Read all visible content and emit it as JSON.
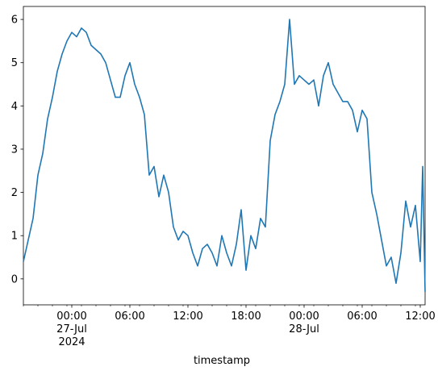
{
  "chart_data": {
    "type": "line",
    "title": "",
    "xlabel": "timestamp",
    "ylabel": "",
    "ylim": [
      -0.6,
      6.3
    ],
    "grid": false,
    "legend": null,
    "y_ticks": [
      0,
      1,
      2,
      3,
      4,
      5,
      6
    ],
    "x_range_hours": [
      "2024-07-26 19:00",
      "2024-07-28 12:30"
    ],
    "x_ticks": [
      {
        "time": "2024-07-27 00:00",
        "label": "00:00",
        "sub": "27-Jul",
        "sub2": "2024"
      },
      {
        "time": "2024-07-27 06:00",
        "label": "06:00"
      },
      {
        "time": "2024-07-27 12:00",
        "label": "12:00"
      },
      {
        "time": "2024-07-27 18:00",
        "label": "18:00"
      },
      {
        "time": "2024-07-28 00:00",
        "label": "00:00",
        "sub": "28-Jul"
      },
      {
        "time": "2024-07-28 06:00",
        "label": "06:00"
      },
      {
        "time": "2024-07-28 12:00",
        "label": "12:00"
      }
    ],
    "series": [
      {
        "color": "#1f77b4",
        "points": [
          [
            "2024-07-26 19:00",
            0.4
          ],
          [
            "2024-07-26 19:30",
            0.9
          ],
          [
            "2024-07-26 20:00",
            1.4
          ],
          [
            "2024-07-26 20:30",
            2.4
          ],
          [
            "2024-07-26 21:00",
            2.9
          ],
          [
            "2024-07-26 21:30",
            3.7
          ],
          [
            "2024-07-26 22:00",
            4.2
          ],
          [
            "2024-07-26 22:30",
            4.8
          ],
          [
            "2024-07-26 23:00",
            5.2
          ],
          [
            "2024-07-26 23:30",
            5.5
          ],
          [
            "2024-07-27 00:00",
            5.7
          ],
          [
            "2024-07-27 00:30",
            5.6
          ],
          [
            "2024-07-27 01:00",
            5.8
          ],
          [
            "2024-07-27 01:30",
            5.7
          ],
          [
            "2024-07-27 02:00",
            5.4
          ],
          [
            "2024-07-27 02:30",
            5.3
          ],
          [
            "2024-07-27 03:00",
            5.2
          ],
          [
            "2024-07-27 03:30",
            5.0
          ],
          [
            "2024-07-27 04:00",
            4.6
          ],
          [
            "2024-07-27 04:30",
            4.2
          ],
          [
            "2024-07-27 05:00",
            4.2
          ],
          [
            "2024-07-27 05:30",
            4.7
          ],
          [
            "2024-07-27 06:00",
            5.0
          ],
          [
            "2024-07-27 06:30",
            4.5
          ],
          [
            "2024-07-27 07:00",
            4.2
          ],
          [
            "2024-07-27 07:30",
            3.8
          ],
          [
            "2024-07-27 08:00",
            2.4
          ],
          [
            "2024-07-27 08:30",
            2.6
          ],
          [
            "2024-07-27 09:00",
            1.9
          ],
          [
            "2024-07-27 09:30",
            2.4
          ],
          [
            "2024-07-27 10:00",
            2.0
          ],
          [
            "2024-07-27 10:30",
            1.2
          ],
          [
            "2024-07-27 11:00",
            0.9
          ],
          [
            "2024-07-27 11:30",
            1.1
          ],
          [
            "2024-07-27 12:00",
            1.0
          ],
          [
            "2024-07-27 12:30",
            0.6
          ],
          [
            "2024-07-27 13:00",
            0.3
          ],
          [
            "2024-07-27 13:30",
            0.7
          ],
          [
            "2024-07-27 14:00",
            0.8
          ],
          [
            "2024-07-27 14:30",
            0.6
          ],
          [
            "2024-07-27 15:00",
            0.3
          ],
          [
            "2024-07-27 15:30",
            1.0
          ],
          [
            "2024-07-27 16:00",
            0.6
          ],
          [
            "2024-07-27 16:30",
            0.3
          ],
          [
            "2024-07-27 17:00",
            0.8
          ],
          [
            "2024-07-27 17:30",
            1.6
          ],
          [
            "2024-07-27 18:00",
            0.2
          ],
          [
            "2024-07-27 18:30",
            1.0
          ],
          [
            "2024-07-27 19:00",
            0.7
          ],
          [
            "2024-07-27 19:30",
            1.4
          ],
          [
            "2024-07-27 20:00",
            1.2
          ],
          [
            "2024-07-27 20:30",
            3.2
          ],
          [
            "2024-07-27 21:00",
            3.8
          ],
          [
            "2024-07-27 21:30",
            4.1
          ],
          [
            "2024-07-27 22:00",
            4.5
          ],
          [
            "2024-07-27 22:30",
            6.0
          ],
          [
            "2024-07-27 23:00",
            4.5
          ],
          [
            "2024-07-27 23:30",
            4.7
          ],
          [
            "2024-07-28 00:00",
            4.6
          ],
          [
            "2024-07-28 00:30",
            4.5
          ],
          [
            "2024-07-28 01:00",
            4.6
          ],
          [
            "2024-07-28 01:30",
            4.0
          ],
          [
            "2024-07-28 02:00",
            4.7
          ],
          [
            "2024-07-28 02:30",
            5.0
          ],
          [
            "2024-07-28 03:00",
            4.5
          ],
          [
            "2024-07-28 03:30",
            4.3
          ],
          [
            "2024-07-28 04:00",
            4.1
          ],
          [
            "2024-07-28 04:30",
            4.1
          ],
          [
            "2024-07-28 05:00",
            3.9
          ],
          [
            "2024-07-28 05:30",
            3.4
          ],
          [
            "2024-07-28 06:00",
            3.9
          ],
          [
            "2024-07-28 06:30",
            3.7
          ],
          [
            "2024-07-28 07:00",
            2.0
          ],
          [
            "2024-07-28 07:30",
            1.5
          ],
          [
            "2024-07-28 08:00",
            0.9
          ],
          [
            "2024-07-28 08:30",
            0.3
          ],
          [
            "2024-07-28 09:00",
            0.5
          ],
          [
            "2024-07-28 09:30",
            -0.1
          ],
          [
            "2024-07-28 10:00",
            0.6
          ],
          [
            "2024-07-28 10:30",
            1.8
          ],
          [
            "2024-07-28 11:00",
            1.2
          ],
          [
            "2024-07-28 11:30",
            1.7
          ],
          [
            "2024-07-28 12:00",
            0.4
          ],
          [
            "2024-07-28 12:15",
            2.6
          ],
          [
            "2024-07-28 12:30",
            -0.3
          ]
        ]
      }
    ]
  }
}
